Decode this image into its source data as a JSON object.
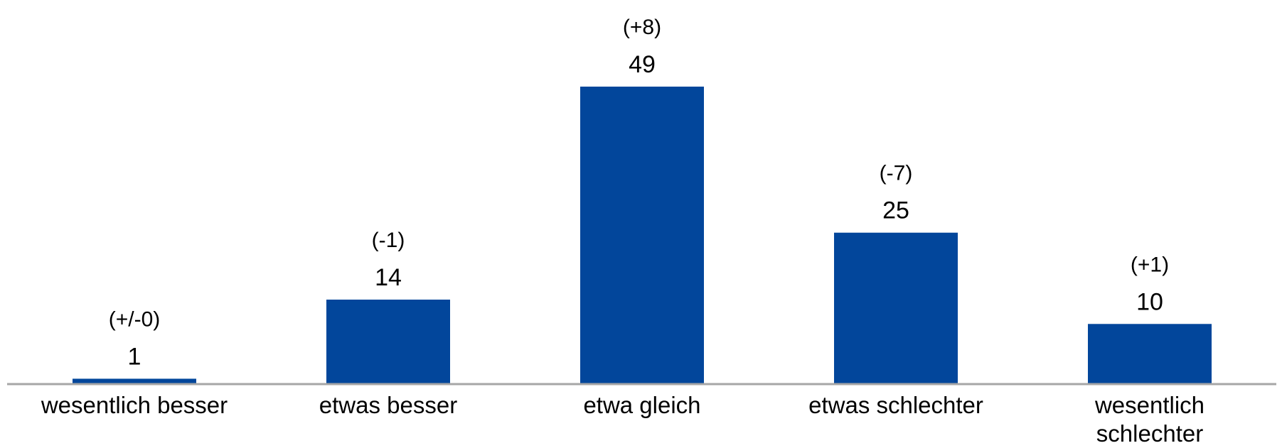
{
  "chart_data": {
    "type": "bar",
    "title": "",
    "xlabel": "",
    "ylabel": "",
    "categories": [
      "wesentlich besser",
      "etwas besser",
      "etwa gleich",
      "etwas schlechter",
      "wesentlich schlechter"
    ],
    "category_label_lines": [
      [
        "wesentlich besser"
      ],
      [
        "etwas besser"
      ],
      [
        "etwa gleich"
      ],
      [
        "etwas schlechter"
      ],
      [
        "wesentlich",
        "schlechter"
      ]
    ],
    "values": [
      1,
      14,
      49,
      25,
      10
    ],
    "value_labels": [
      "1",
      "14",
      "49",
      "25",
      "10"
    ],
    "change_labels": [
      "(+/-0)",
      "(-1)",
      "(+8)",
      "(-7)",
      "(+1)"
    ],
    "ylim": [
      0,
      49
    ],
    "grid": false,
    "legend": "none",
    "bar_color": "#02469b",
    "axis_color": "#a6a6a6"
  }
}
